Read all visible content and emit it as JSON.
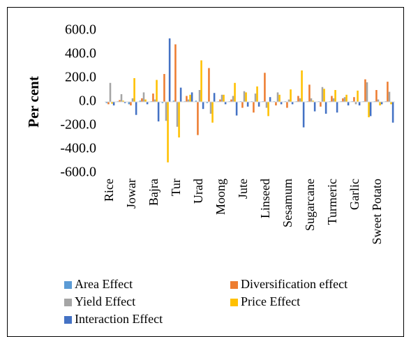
{
  "chart_data": {
    "type": "bar",
    "y_label": "Per cent",
    "categories": [
      "Rice",
      null,
      "Jowar",
      null,
      "Bajra",
      null,
      "Tur",
      null,
      "Urad",
      null,
      "Moong",
      null,
      "Jute",
      null,
      "Linseed",
      null,
      "Sesamum",
      null,
      "Sugarcane",
      null,
      "Turmeric",
      null,
      "Garlic",
      null,
      "Sweet Potato",
      null
    ],
    "series": [
      {
        "name": "Area Effect",
        "color": "#5b9bd5",
        "values": [
          -10,
          5,
          -20,
          10,
          5,
          -10,
          10,
          5,
          10,
          -10,
          5,
          5,
          5,
          5,
          5,
          5,
          5,
          5,
          5,
          5,
          5,
          5,
          5,
          5,
          5,
          5
        ]
      },
      {
        "name": "Diversification effect",
        "color": "#ed7d31",
        "values": [
          -20,
          15,
          -30,
          30,
          70,
          235,
          485,
          50,
          -280,
          285,
          20,
          20,
          -50,
          -90,
          245,
          -30,
          -50,
          50,
          145,
          -40,
          50,
          30,
          40,
          190,
          100,
          170
        ]
      },
      {
        "name": "Yield Effect",
        "color": "#a5a5a5",
        "values": [
          160,
          65,
          30,
          80,
          20,
          -160,
          -210,
          20,
          100,
          -100,
          60,
          50,
          90,
          70,
          -50,
          80,
          20,
          30,
          30,
          125,
          30,
          40,
          -20,
          165,
          20,
          85
        ]
      },
      {
        "name": "Price Effect",
        "color": "#ffc000",
        "values": [
          -15,
          10,
          200,
          20,
          185,
          -510,
          -300,
          60,
          350,
          -175,
          60,
          160,
          80,
          130,
          -120,
          60,
          105,
          265,
          10,
          110,
          100,
          60,
          95,
          -130,
          -30,
          -20
        ]
      },
      {
        "name": "Interaction Effect",
        "color": "#4472c4",
        "values": [
          -30,
          -10,
          -110,
          -20,
          -165,
          535,
          120,
          80,
          -60,
          75,
          -20,
          -115,
          -40,
          -40,
          40,
          -20,
          -20,
          -215,
          -80,
          -100,
          -90,
          -30,
          -30,
          -120,
          -20,
          -175
        ]
      }
    ],
    "ylim": [
      -600,
      600
    ],
    "yticks": [
      {
        "value": -600,
        "label": "-600.0"
      },
      {
        "value": -400,
        "label": "-400.0"
      },
      {
        "value": -200,
        "label": "-200.0"
      },
      {
        "value": 0,
        "label": "0.0"
      },
      {
        "value": 200,
        "label": "200.0"
      },
      {
        "value": 400,
        "label": "400.0"
      },
      {
        "value": 600,
        "label": "600.0"
      }
    ],
    "grid": false
  }
}
